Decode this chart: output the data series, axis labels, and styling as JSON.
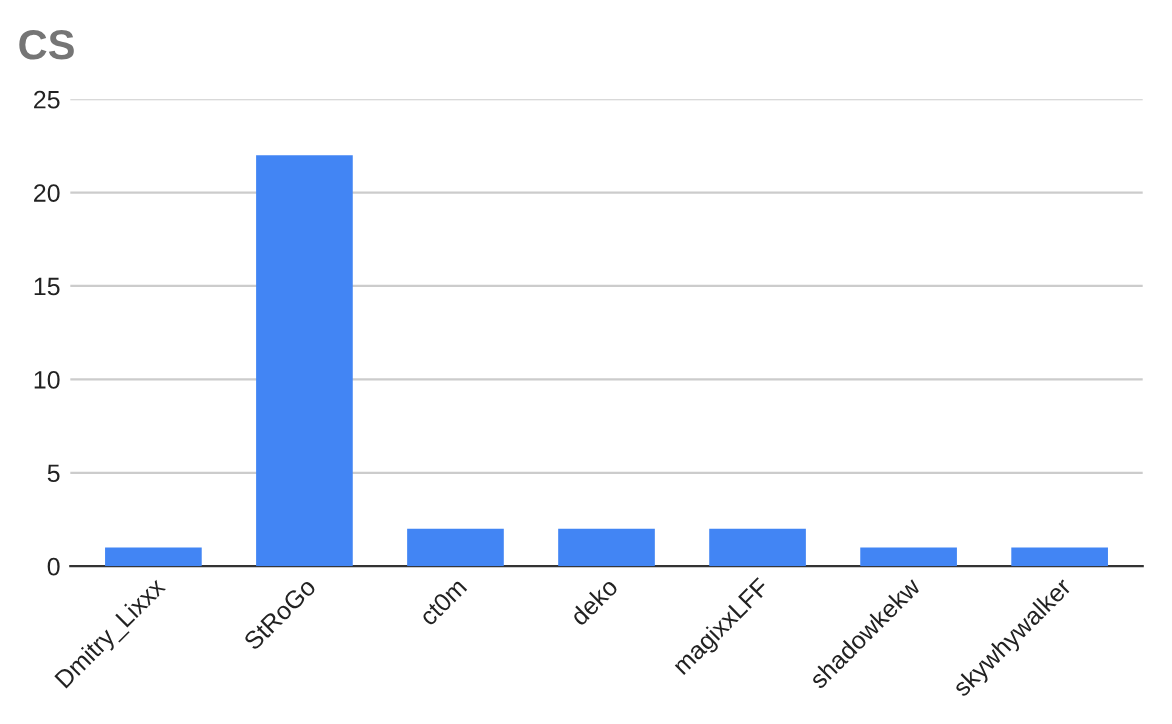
{
  "chart_data": {
    "type": "bar",
    "title": "CS",
    "categories": [
      "Dmitry_Lixxx",
      "StRoGo",
      "ct0m",
      "deko",
      "magixxLFF",
      "shadowkekw",
      "skywhywalker"
    ],
    "values": [
      1,
      22,
      2,
      2,
      2,
      1,
      1
    ],
    "color": "#4285f4",
    "ylim": [
      0,
      25
    ],
    "yticks": [
      0,
      5,
      10,
      15,
      20,
      25
    ],
    "grid": "y"
  }
}
